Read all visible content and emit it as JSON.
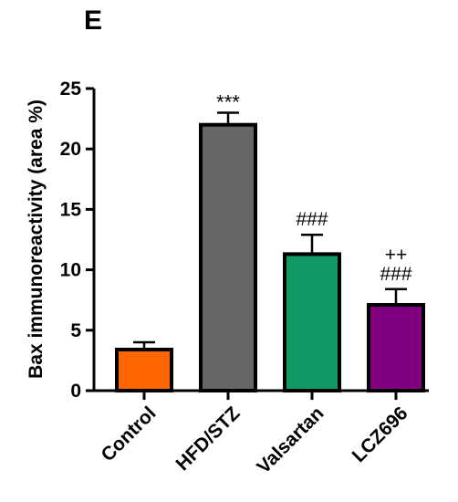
{
  "panel_label": "E",
  "chart_data": {
    "type": "bar",
    "title": "",
    "xlabel": "",
    "ylabel": "Bax immunoreactivity (area %)",
    "ylim": [
      0,
      25
    ],
    "yticks": [
      "0",
      "5",
      "10",
      "15",
      "20",
      "25"
    ],
    "categories": [
      "Control",
      "HFD/STZ",
      "Valsartan",
      "LCZ696"
    ],
    "values": [
      3.4,
      22.0,
      11.3,
      7.1
    ],
    "errors": [
      0.6,
      1.0,
      1.6,
      1.3
    ],
    "colors": [
      "#ff6600",
      "#666666",
      "#119966",
      "#800080"
    ],
    "annotations": [
      [],
      [
        "***"
      ],
      [
        "###"
      ],
      [
        "++",
        "###"
      ]
    ],
    "grid": false,
    "legend": "none"
  }
}
